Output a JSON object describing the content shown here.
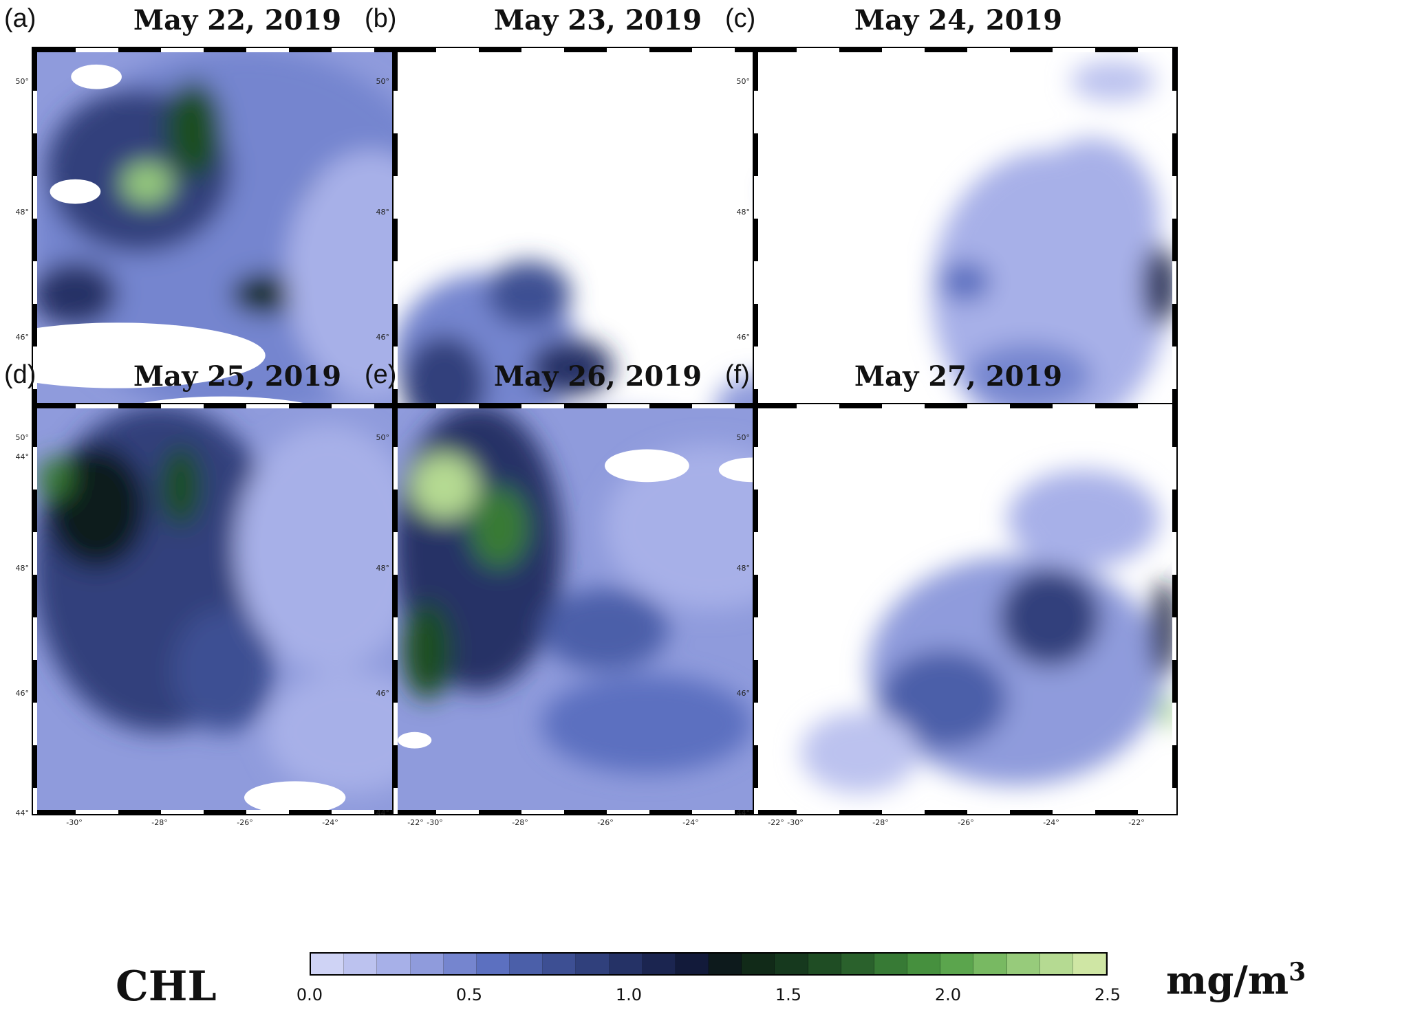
{
  "panels": [
    {
      "letter": "(a)",
      "title": "May 22, 2019"
    },
    {
      "letter": "(b)",
      "title": "May 23, 2019"
    },
    {
      "letter": "(c)",
      "title": "May 24, 2019"
    },
    {
      "letter": "(d)",
      "title": "May 25, 2019"
    },
    {
      "letter": "(e)",
      "title": "May 26, 2019"
    },
    {
      "letter": "(f)",
      "title": "May 27, 2019"
    }
  ],
  "lat_ticks": [
    "50°",
    "48°",
    "46°",
    "44°"
  ],
  "lon_ticks": [
    "-30°",
    "-28°",
    "-26°",
    "-24°",
    "-22°"
  ],
  "colorbar": {
    "label": "CHL",
    "unit": "mg/m",
    "unit_exp": "3",
    "ticks": [
      "0.0",
      "0.5",
      "1.0",
      "1.5",
      "2.0",
      "2.5"
    ],
    "colors": [
      "#cfd3f5",
      "#bcc2ef",
      "#a7b0e8",
      "#8f9bdc",
      "#7585cf",
      "#5c70c0",
      "#4b5fa9",
      "#3d4f93",
      "#30407c",
      "#253266",
      "#1b2550",
      "#121a3a",
      "#0d1a1c",
      "#112a18",
      "#16391e",
      "#1f4d24",
      "#2a612c",
      "#377a35",
      "#46903e",
      "#5ba54d",
      "#78b962",
      "#97cb7b",
      "#b5da92",
      "#cfe6a4"
    ],
    "range": [
      0.0,
      2.5
    ]
  },
  "map_extent": {
    "lon": [
      -31,
      -21
    ],
    "lat": [
      44,
      50.5
    ]
  }
}
